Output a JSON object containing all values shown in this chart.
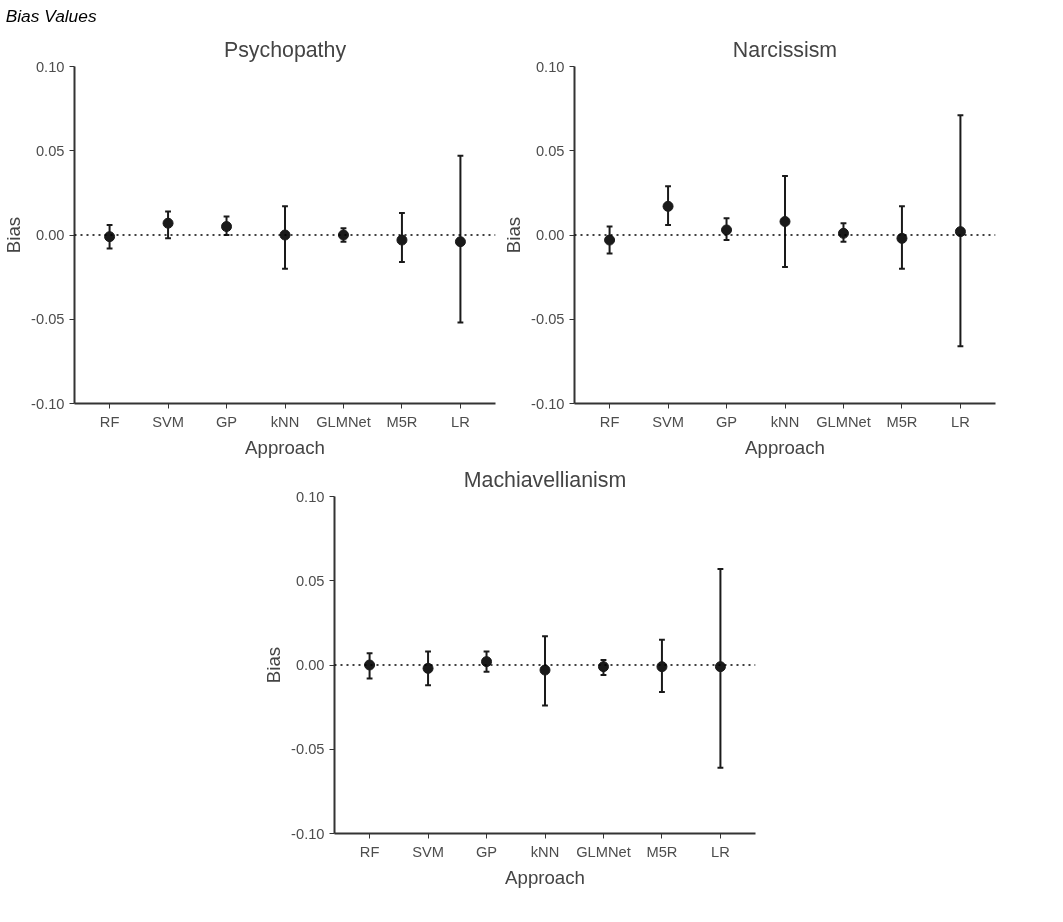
{
  "chart_data": [
    {
      "type": "scatter",
      "title": "Psychopathy",
      "xlabel": "Approach",
      "ylabel": "Bias",
      "annotations": [
        "Bias Values"
      ],
      "marker": "circle",
      "categories": [
        "RF",
        "SVM",
        "GP",
        "kNN",
        "GLMNet",
        "M5R",
        "LR"
      ],
      "series": [
        {
          "color": "#1a1a1a",
          "values": [
            -0.001,
            0.007,
            0.005,
            0.0,
            0.0,
            -0.003,
            -0.004
          ],
          "errors": [
            [
              -0.008,
              0.006
            ],
            [
              -0.002,
              0.014
            ],
            [
              0.0,
              0.011
            ],
            [
              -0.02,
              0.017
            ],
            [
              -0.004,
              0.004
            ],
            [
              -0.016,
              0.013
            ],
            [
              -0.052,
              0.047
            ]
          ]
        }
      ],
      "ylim": [
        -0.1,
        0.1
      ],
      "yticks": [
        {
          "value": -0.1,
          "label": "-0.10"
        },
        {
          "value": -0.05,
          "label": "-0.05"
        },
        {
          "value": 0,
          "label": "0.00"
        },
        {
          "value": 0.05,
          "label": "0.05"
        },
        {
          "value": 0.1,
          "label": "0.10"
        }
      ],
      "ref_lines": [
        {
          "axis": "y",
          "value": 0,
          "label": null,
          "color": "#000000",
          "line_style": "dotted"
        }
      ]
    },
    {
      "type": "scatter",
      "title": "Narcissism",
      "xlabel": "Approach",
      "ylabel": "Bias",
      "marker": "circle",
      "categories": [
        "RF",
        "SVM",
        "GP",
        "kNN",
        "GLMNet",
        "M5R",
        "LR"
      ],
      "series": [
        {
          "color": "#1a1a1a",
          "values": [
            -0.003,
            0.017,
            0.003,
            0.008,
            0.001,
            -0.002,
            0.002
          ],
          "errors": [
            [
              -0.011,
              0.005
            ],
            [
              0.006,
              0.029
            ],
            [
              -0.003,
              0.01
            ],
            [
              -0.019,
              0.035
            ],
            [
              -0.004,
              0.007
            ],
            [
              -0.02,
              0.017
            ],
            [
              -0.066,
              0.071
            ]
          ]
        }
      ],
      "ylim": [
        -0.1,
        0.1
      ],
      "yticks": [
        {
          "value": -0.1,
          "label": "-0.10"
        },
        {
          "value": -0.05,
          "label": "-0.05"
        },
        {
          "value": 0,
          "label": "0.00"
        },
        {
          "value": 0.05,
          "label": "0.05"
        },
        {
          "value": 0.1,
          "label": "0.10"
        }
      ],
      "ref_lines": [
        {
          "axis": "y",
          "value": 0,
          "label": null,
          "color": "#000000",
          "line_style": "dotted"
        }
      ]
    },
    {
      "type": "scatter",
      "title": "Machiavellianism",
      "xlabel": "Approach",
      "ylabel": "Bias",
      "marker": "circle",
      "categories": [
        "RF",
        "SVM",
        "GP",
        "kNN",
        "GLMNet",
        "M5R",
        "LR"
      ],
      "series": [
        {
          "color": "#1a1a1a",
          "values": [
            0.0,
            -0.002,
            0.002,
            -0.003,
            -0.001,
            -0.001,
            -0.001
          ],
          "errors": [
            [
              -0.008,
              0.007
            ],
            [
              -0.012,
              0.008
            ],
            [
              -0.004,
              0.008
            ],
            [
              -0.024,
              0.017
            ],
            [
              -0.006,
              0.003
            ],
            [
              -0.016,
              0.015
            ],
            [
              -0.061,
              0.057
            ]
          ]
        }
      ],
      "ylim": [
        -0.1,
        0.1
      ],
      "yticks": [
        {
          "value": -0.1,
          "label": "-0.10"
        },
        {
          "value": -0.05,
          "label": "-0.05"
        },
        {
          "value": 0,
          "label": "0.00"
        },
        {
          "value": 0.05,
          "label": "0.05"
        },
        {
          "value": 0.1,
          "label": "0.10"
        }
      ],
      "ref_lines": [
        {
          "axis": "y",
          "value": 0,
          "label": null,
          "color": "#000000",
          "line_style": "dotted"
        }
      ]
    }
  ]
}
